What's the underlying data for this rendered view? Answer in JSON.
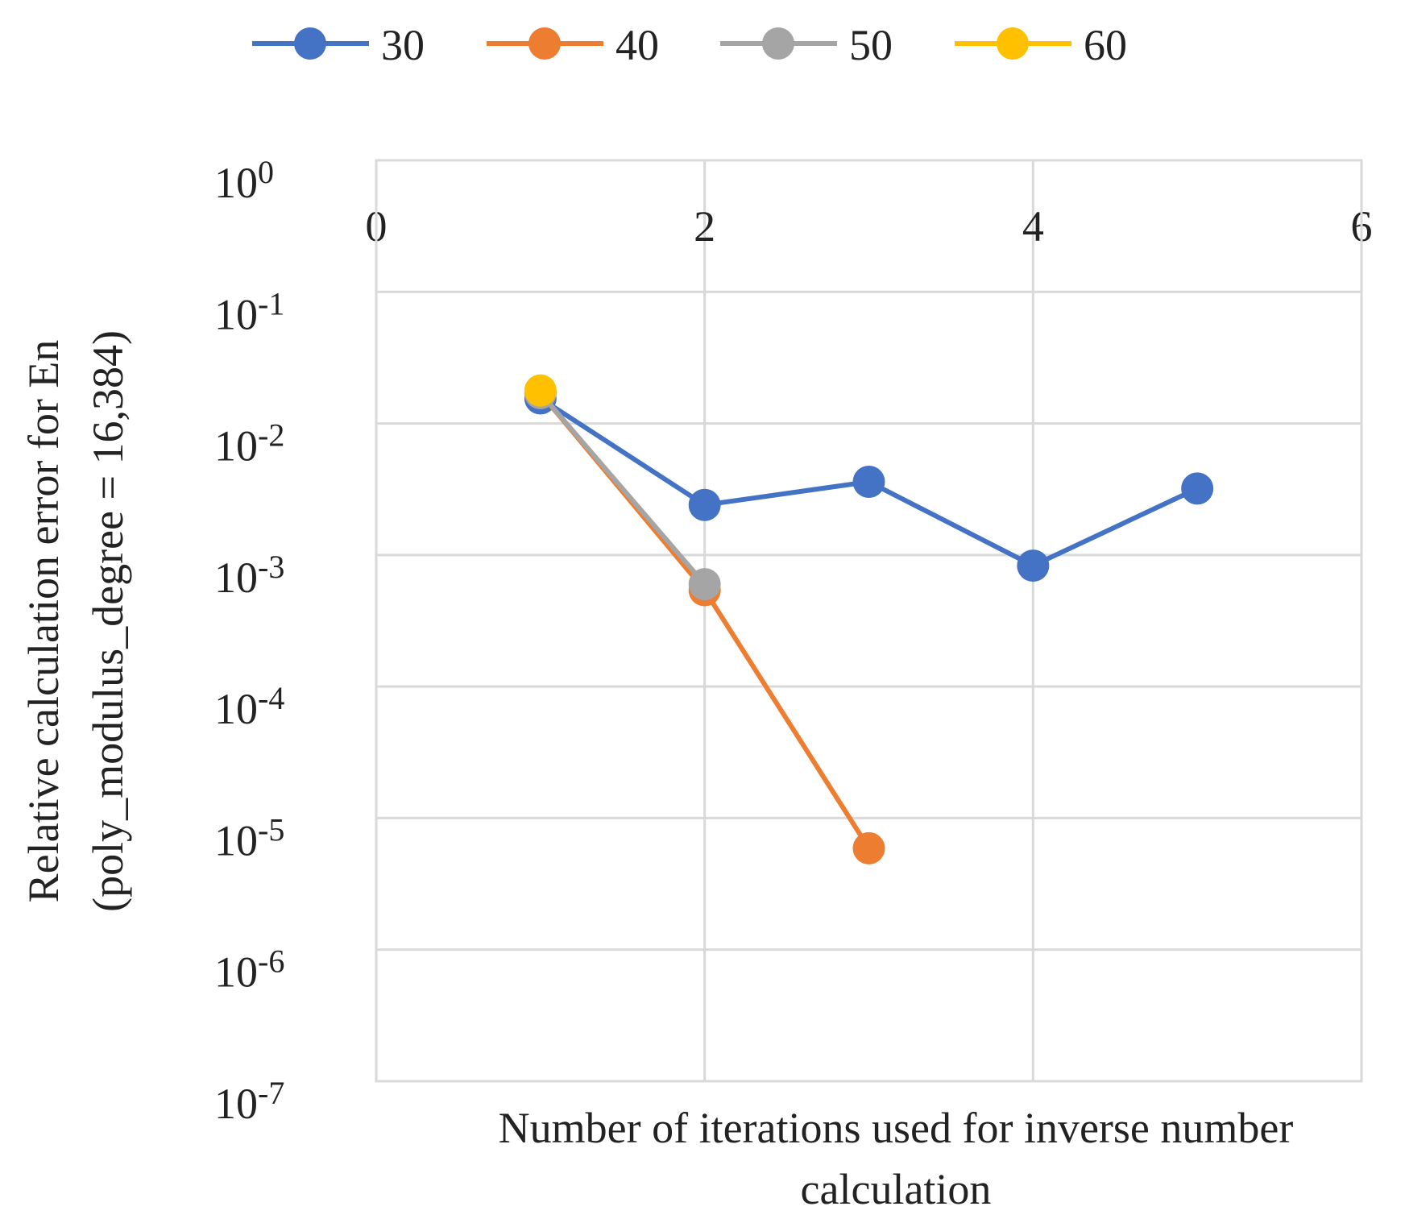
{
  "chart_data": {
    "type": "line",
    "x_label": [
      "Number of iterations used for inverse number",
      "calculation"
    ],
    "y_label": [
      "Relative calculation error for En",
      "(poly_modulus_degree = 16,384)"
    ],
    "xlim": [
      0,
      6
    ],
    "xticks": [
      0,
      2,
      4,
      6
    ],
    "ylim": [
      1e-07,
      1
    ],
    "log_y": true,
    "grid": true,
    "legend": "top",
    "yticks": [
      {
        "value": 1,
        "label": "10 0"
      },
      {
        "value": 0.1,
        "label": "10 -1"
      },
      {
        "value": 0.01,
        "label": "10 -2"
      },
      {
        "value": 0.001,
        "label": "10 -3"
      },
      {
        "value": 0.0001,
        "label": "10 -4"
      },
      {
        "value": 1e-05,
        "label": "10 -5"
      },
      {
        "value": 1e-06,
        "label": "10 -6"
      },
      {
        "value": 1e-07,
        "label": "10 -7"
      }
    ],
    "series": [
      {
        "name": "30",
        "color": "#4472c4",
        "x": [
          1,
          2,
          3,
          4,
          5
        ],
        "values": [
          0.0155,
          0.0024,
          0.0036,
          0.00083,
          0.0032
        ]
      },
      {
        "name": "40",
        "color": "#ed7d31",
        "x": [
          1,
          2,
          3
        ],
        "values": [
          0.017,
          0.00054,
          5.9e-06
        ]
      },
      {
        "name": "50",
        "color": "#a5a5a5",
        "x": [
          1,
          2
        ],
        "values": [
          0.017,
          0.0006
        ]
      },
      {
        "name": "60",
        "color": "#ffc000",
        "x": [
          1
        ],
        "values": [
          0.0178
        ]
      }
    ]
  }
}
